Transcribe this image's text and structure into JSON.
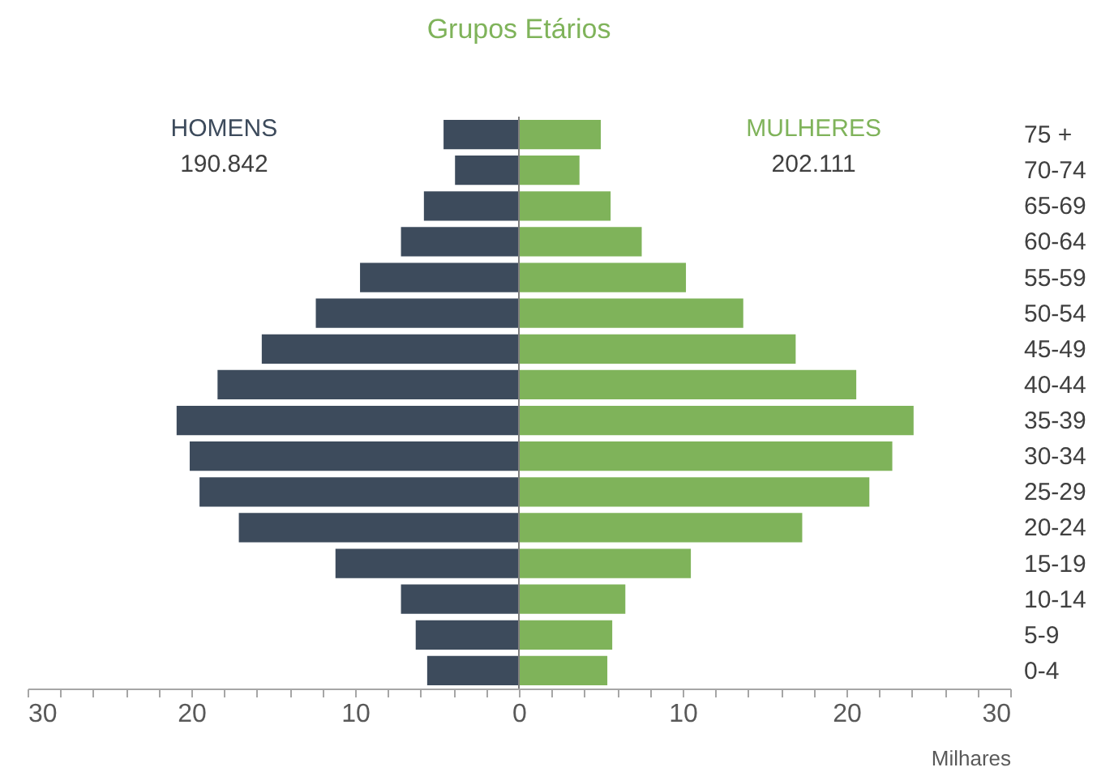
{
  "chart_data": {
    "type": "bar",
    "orientation": "horizontal",
    "title": "Grupos Etários",
    "xlabel": "Milhares",
    "categories": [
      "75 +",
      "70-74",
      "65-69",
      "60-64",
      "55-59",
      "50-54",
      "45-49",
      "40-44",
      "35-39",
      "30-34",
      "25-29",
      "20-24",
      "15-19",
      "10-14",
      "5-9",
      "0-4"
    ],
    "series": [
      {
        "name": "HOMENS",
        "color": "#3d4b5c",
        "values": [
          -4.6,
          -3.9,
          -5.8,
          -7.2,
          -9.7,
          -12.4,
          -15.7,
          -18.4,
          -20.9,
          -20.1,
          -19.5,
          -17.1,
          -11.2,
          -7.2,
          -6.3,
          -5.6
        ]
      },
      {
        "name": "MULHERES",
        "color": "#7fb35a",
        "values": [
          5.0,
          3.7,
          5.6,
          7.5,
          10.2,
          13.7,
          16.9,
          20.6,
          24.1,
          22.8,
          21.4,
          17.3,
          10.5,
          6.5,
          5.7,
          5.4
        ]
      }
    ],
    "annotations": [
      "190.842",
      "202.111"
    ],
    "xlim": [
      -30,
      30
    ],
    "stacked": true,
    "xticks": [
      {
        "value": -30,
        "label": "30"
      },
      {
        "value": -28,
        "label": null
      },
      {
        "value": -26,
        "label": null
      },
      {
        "value": -24,
        "label": null
      },
      {
        "value": -22,
        "label": null
      },
      {
        "value": -20,
        "label": "20"
      },
      {
        "value": -18,
        "label": null
      },
      {
        "value": -16,
        "label": null
      },
      {
        "value": -14,
        "label": null
      },
      {
        "value": -12,
        "label": null
      },
      {
        "value": -10,
        "label": "10"
      },
      {
        "value": -8,
        "label": null
      },
      {
        "value": -6,
        "label": null
      },
      {
        "value": -4,
        "label": null
      },
      {
        "value": -2,
        "label": null
      },
      0,
      {
        "value": 2,
        "label": null
      },
      {
        "value": 4,
        "label": null
      },
      {
        "value": 6,
        "label": null
      },
      {
        "value": 8,
        "label": null
      },
      10,
      {
        "value": 12,
        "label": null
      },
      {
        "value": 14,
        "label": null
      },
      {
        "value": 16,
        "label": null
      },
      {
        "value": 18,
        "label": null
      },
      20,
      {
        "value": 22,
        "label": null
      },
      {
        "value": 24,
        "label": null
      },
      {
        "value": 26,
        "label": null
      },
      {
        "value": 28,
        "label": null
      },
      30
    ],
    "ref_lines": [
      {
        "axis": "x",
        "value": 0,
        "color": "#7f7f7f"
      }
    ],
    "grid": false,
    "legend": false
  }
}
